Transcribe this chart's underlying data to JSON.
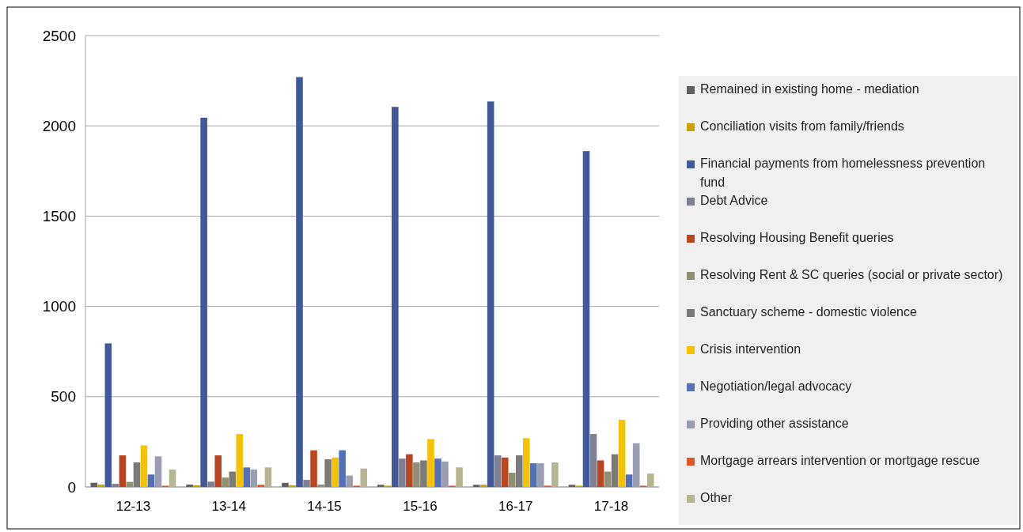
{
  "chart_data": {
    "type": "bar",
    "categories": [
      "12-13",
      "13-14",
      "14-15",
      "15-16",
      "16-17",
      "17-18"
    ],
    "ylim": [
      0,
      2500
    ],
    "yticks": [
      0,
      500,
      1000,
      1500,
      2000,
      2500
    ],
    "grid": "y",
    "legend": "right",
    "series": [
      {
        "name": "Remained in existing home - mediation",
        "color": "#606060",
        "values": [
          23,
          13,
          23,
          12,
          12,
          12
        ]
      },
      {
        "name": "Conciliation visits from family/friends",
        "color": "#c9a200",
        "values": [
          13,
          9,
          9,
          7,
          12,
          7
        ]
      },
      {
        "name": "Financial payments from homelessness prevention fund",
        "color": "#41589b",
        "values": [
          795,
          2045,
          2270,
          2105,
          2135,
          1860
        ]
      },
      {
        "name": "Debt Advice",
        "color": "#7d7f93",
        "values": [
          17,
          29,
          39,
          157,
          175,
          293
        ]
      },
      {
        "name": "Resolving Housing Benefit queries",
        "color": "#b9461f",
        "values": [
          175,
          175,
          203,
          181,
          163,
          147
        ]
      },
      {
        "name": "Resolving Rent & SC queries (social or private sector)",
        "color": "#8f8f74",
        "values": [
          28,
          52,
          13,
          136,
          79,
          85
        ]
      },
      {
        "name": "Sanctuary scheme - domestic violence",
        "color": "#7a7a7a",
        "values": [
          136,
          85,
          153,
          147,
          175,
          181
        ]
      },
      {
        "name": "Crisis intervention",
        "color": "#f5c200",
        "values": [
          230,
          293,
          163,
          265,
          270,
          372
        ]
      },
      {
        "name": "Negotiation/legal advocacy",
        "color": "#5470b8",
        "values": [
          69,
          108,
          203,
          157,
          131,
          69
        ]
      },
      {
        "name": "Providing other assistance",
        "color": "#9a9cb0",
        "values": [
          169,
          96,
          63,
          141,
          131,
          242
        ]
      },
      {
        "name": "Mortgage arrears intervention or mortgage rescue",
        "color": "#e0582a",
        "values": [
          7,
          12,
          7,
          7,
          7,
          7
        ]
      },
      {
        "name": "Other",
        "color": "#b5b593",
        "values": [
          96,
          108,
          102,
          108,
          136,
          74
        ]
      }
    ]
  }
}
